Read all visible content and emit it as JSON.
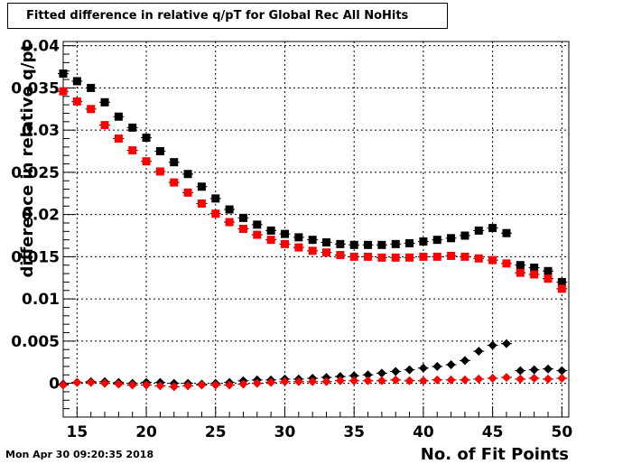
{
  "chart_data": {
    "type": "scatter",
    "title": "Fitted difference in relative q/pT  for Global Rec All NoHits",
    "xlabel": "No. of Fit Points",
    "ylabel": "difference in relative q/pt",
    "xlim": [
      14,
      50.5
    ],
    "ylim": [
      -0.004,
      0.0405
    ],
    "grid": true,
    "legend": "none",
    "x_ticks": [
      "15",
      "20",
      "25",
      "30",
      "35",
      "40",
      "45",
      "50"
    ],
    "y_ticks": [
      "0",
      "0.005",
      "0.01",
      "0.015",
      "0.02",
      "0.025",
      "0.03",
      "0.035",
      "0.04"
    ],
    "series": [
      {
        "marker": "square",
        "color": "#000000",
        "x": [
          14,
          15,
          16,
          17,
          18,
          19,
          20,
          21,
          22,
          23,
          24,
          25,
          26,
          27,
          28,
          29,
          30,
          31,
          32,
          33,
          34,
          35,
          36,
          37,
          38,
          39,
          40,
          41,
          42,
          43,
          44,
          45,
          46,
          47,
          48,
          49,
          50
        ],
        "y": [
          0.0367,
          0.0358,
          0.035,
          0.0333,
          0.0316,
          0.0303,
          0.0291,
          0.0275,
          0.0262,
          0.0248,
          0.0233,
          0.0219,
          0.0206,
          0.0196,
          0.0188,
          0.0181,
          0.0177,
          0.0173,
          0.017,
          0.0167,
          0.0165,
          0.0164,
          0.0164,
          0.0164,
          0.0165,
          0.0166,
          0.0168,
          0.017,
          0.0172,
          0.0175,
          0.0181,
          0.0184,
          0.0178,
          0.014,
          0.0137,
          0.0133,
          0.012
        ]
      },
      {
        "marker": "square",
        "color": "#ff0000",
        "x": [
          14,
          15,
          16,
          17,
          18,
          19,
          20,
          21,
          22,
          23,
          24,
          25,
          26,
          27,
          28,
          29,
          30,
          31,
          32,
          33,
          34,
          35,
          36,
          37,
          38,
          39,
          40,
          41,
          42,
          43,
          44,
          45,
          46,
          47,
          48,
          49,
          50
        ],
        "y": [
          0.0346,
          0.0334,
          0.0325,
          0.0306,
          0.029,
          0.0276,
          0.0263,
          0.0251,
          0.0238,
          0.0226,
          0.0213,
          0.0201,
          0.0191,
          0.0183,
          0.0176,
          0.017,
          0.0165,
          0.0161,
          0.0157,
          0.0155,
          0.0152,
          0.015,
          0.015,
          0.0149,
          0.0149,
          0.0149,
          0.015,
          0.015,
          0.0151,
          0.015,
          0.0148,
          0.0146,
          0.0142,
          0.0131,
          0.0129,
          0.0124,
          0.0112
        ]
      },
      {
        "marker": "diamond",
        "color": "#000000",
        "x": [
          14,
          15,
          16,
          17,
          18,
          19,
          20,
          21,
          22,
          23,
          24,
          25,
          26,
          27,
          28,
          29,
          30,
          31,
          32,
          33,
          34,
          35,
          36,
          37,
          38,
          39,
          40,
          41,
          42,
          43,
          44,
          45,
          46,
          47,
          48,
          49,
          50
        ],
        "y": [
          -0.0001,
          0.0001,
          0.0002,
          0.0002,
          0.0001,
          0.0,
          0.0001,
          0.0001,
          0.0,
          0.0,
          -0.0001,
          0.0,
          0.0001,
          0.0003,
          0.0004,
          0.0004,
          0.0005,
          0.0005,
          0.0006,
          0.0007,
          0.0008,
          0.0009,
          0.001,
          0.0012,
          0.0014,
          0.0016,
          0.0018,
          0.002,
          0.0022,
          0.0027,
          0.0038,
          0.0045,
          0.0047,
          0.0015,
          0.0016,
          0.0017,
          0.0015
        ]
      },
      {
        "marker": "diamond",
        "color": "#ff0000",
        "x": [
          14,
          15,
          16,
          17,
          18,
          19,
          20,
          21,
          22,
          23,
          24,
          25,
          26,
          27,
          28,
          29,
          30,
          31,
          32,
          33,
          34,
          35,
          36,
          37,
          38,
          39,
          40,
          41,
          42,
          43,
          44,
          45,
          46,
          47,
          48,
          49,
          50
        ],
        "y": [
          -0.0002,
          0.0001,
          0.0001,
          0.0,
          -0.0001,
          -0.0002,
          -0.0002,
          -0.0003,
          -0.0004,
          -0.0003,
          -0.0002,
          -0.0002,
          -0.0002,
          -0.0001,
          0.0,
          0.0001,
          0.0002,
          0.0002,
          0.0002,
          0.0002,
          0.0003,
          0.0003,
          0.0003,
          0.0003,
          0.0004,
          0.0003,
          0.0003,
          0.0004,
          0.0004,
          0.0004,
          0.0005,
          0.0006,
          0.0007,
          0.0005,
          0.0006,
          0.0005,
          0.0006
        ]
      }
    ]
  },
  "footer": {
    "timestamp": "Mon Apr 30 09:20:35 2018"
  }
}
